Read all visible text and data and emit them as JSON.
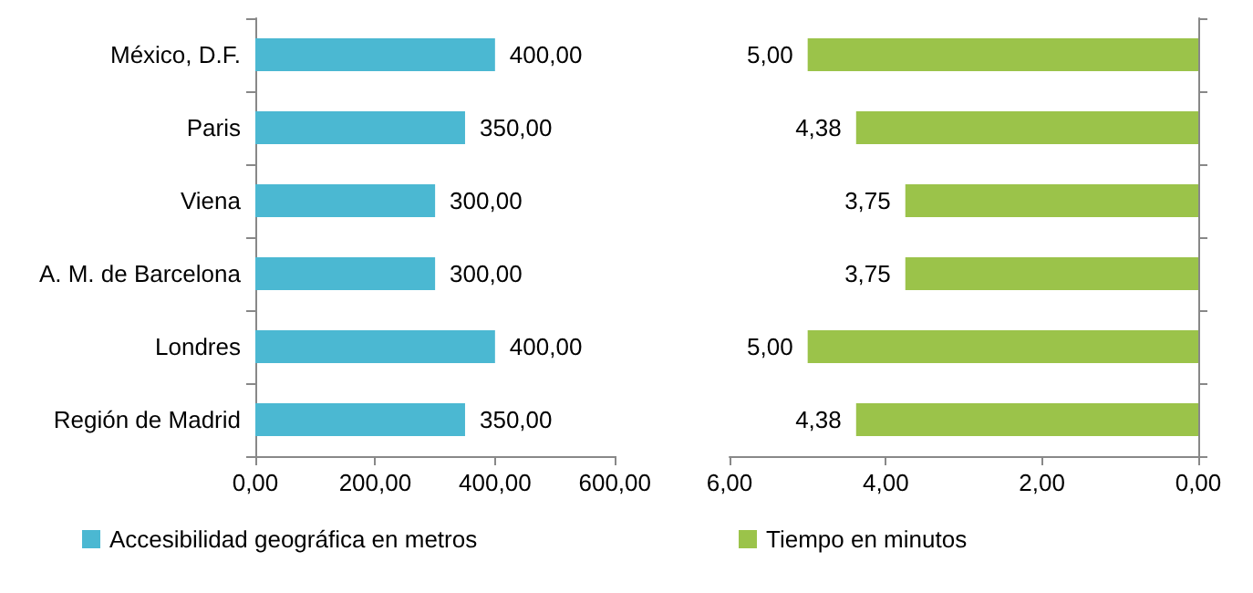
{
  "chart_data": [
    {
      "type": "bar",
      "orientation": "horizontal",
      "categories": [
        "México, D.F.",
        "Paris",
        "Viena",
        "A. M. de Barcelona",
        "Londres",
        "Región de Madrid"
      ],
      "series": [
        {
          "name": "Accesibilidad geográfica en metros",
          "color": "#4bb8d2",
          "values": [
            400,
            350,
            300,
            300,
            400,
            350
          ],
          "value_labels": [
            "400,00",
            "350,00",
            "300,00",
            "300,00",
            "400,00",
            "350,00"
          ]
        }
      ],
      "xlim": [
        0,
        600
      ],
      "xticks": [
        {
          "value": 0,
          "label": "0,00"
        },
        {
          "value": 200,
          "label": "200,00"
        },
        {
          "value": 400,
          "label": "400,00"
        },
        {
          "value": 600,
          "label": "600,00"
        }
      ],
      "grid": false,
      "legend": "bottom"
    },
    {
      "type": "bar",
      "orientation": "horizontal",
      "categories": [
        null,
        null,
        null,
        null,
        null,
        null
      ],
      "series": [
        {
          "name": "Tiempo en minutos",
          "color": "#9bc34a",
          "values": [
            5,
            4.38,
            3.75,
            3.75,
            5,
            4.38
          ],
          "value_labels": [
            "5,00",
            "4,38",
            "3,75",
            "3,75",
            "5,00",
            "4,38"
          ]
        }
      ],
      "xlim": [
        6,
        0
      ],
      "xticks": [
        {
          "value": 6,
          "label": "6,00"
        },
        {
          "value": 4,
          "label": "4,00"
        },
        {
          "value": 2,
          "label": "2,00"
        },
        {
          "value": 0,
          "label": "0,00"
        }
      ],
      "grid": false,
      "legend": "bottom",
      "tick_labels": "x"
    }
  ]
}
